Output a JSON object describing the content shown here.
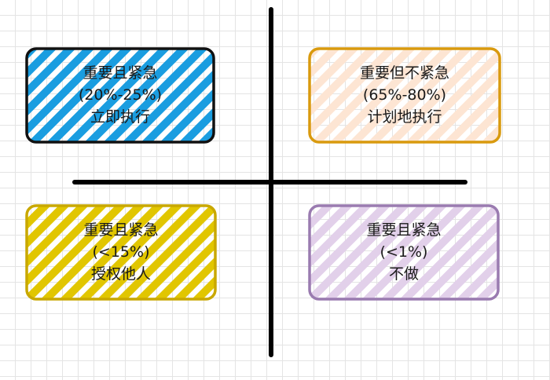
{
  "quadrants": [
    {
      "id": "q1",
      "lines": [
        "重要且紧急",
        "(20%-25%)",
        "立即执行"
      ],
      "fill": "#1a9de0",
      "stroke": "#111111",
      "style": "hatch"
    },
    {
      "id": "q2",
      "lines": [
        "重要但不紧急",
        "(65%-80%)",
        "计划地执行"
      ],
      "fill": "#fde5d3",
      "stroke": "#d99a0e",
      "style": "hatch"
    },
    {
      "id": "q3",
      "lines": [
        "重要且紧急",
        "(<15%)",
        "授权他人"
      ],
      "fill": "#e1c600",
      "stroke": "#c9a800",
      "style": "hatch"
    },
    {
      "id": "q4",
      "lines": [
        "重要且紧急",
        "(<1%)",
        "不做"
      ],
      "fill": "#e2d0ea",
      "stroke": "#9a7bb0",
      "style": "hatch"
    }
  ],
  "axes": {
    "color": "#000000"
  }
}
